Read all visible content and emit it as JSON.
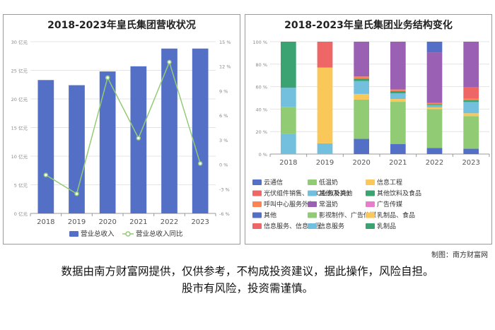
{
  "credit": "制图：南方财富网",
  "disclaimer": [
    "数据由南方财富网提供，仅供参考，不构成投资建议，据此操作，风险自担。",
    "股市有风险，投资需谨慎。"
  ],
  "colors": {
    "bar": "#5470c6",
    "line": "#91cc75",
    "axis_text": "#888888",
    "grid": "#e4e4e4"
  },
  "chart_data": [
    {
      "type": "bar",
      "title": "2018-2023年皇氏集团营收状况",
      "categories": [
        "2018",
        "2019",
        "2020",
        "2021",
        "2022",
        "2023"
      ],
      "y_ticks": [
        "0 亿元",
        "5 亿元",
        "10 亿元",
        "15 亿元",
        "20 亿元",
        "25 亿元",
        "30 亿元"
      ],
      "y2_ticks": [
        "-6 %",
        "-3 %",
        "0 %",
        "3 %",
        "6 %",
        "9 %",
        "12 %",
        "15 %"
      ],
      "ylim": [
        0,
        30
      ],
      "y2lim": [
        -6,
        15
      ],
      "series": [
        {
          "name": "营业总收入",
          "type": "bar",
          "axis": "left",
          "values": [
            23.3,
            22.4,
            24.8,
            25.7,
            28.8,
            28.8
          ]
        },
        {
          "name": "营业总收入同比",
          "type": "line",
          "axis": "right",
          "values": [
            -1.3,
            -3.6,
            10.6,
            3.2,
            12.5,
            0.1
          ]
        }
      ],
      "legend_position": "bottom"
    },
    {
      "type": "bar",
      "stacked": true,
      "title": "2018-2023年皇氏集团业务结构变化",
      "categories": [
        "2018",
        "2019",
        "2020",
        "2021",
        "2022",
        "2023"
      ],
      "y_ticks": [
        "0 %",
        "20 %",
        "40 %",
        "60 %",
        "80 %",
        "100 %"
      ],
      "ylim": [
        0,
        100
      ],
      "series": [
        {
          "name": "云通信",
          "color": "#5470c6",
          "values": [
            0,
            0,
            13.5,
            9,
            5.5,
            4.8
          ]
        },
        {
          "name": "低温奶",
          "color": "#91cc75",
          "values": [
            0,
            0,
            35,
            37.5,
            34.5,
            29
          ]
        },
        {
          "name": "信息工程",
          "color": "#fac858",
          "values": [
            0,
            0,
            5,
            2.5,
            1.5,
            2.5
          ]
        },
        {
          "name": "光伏组件销售、EPC业务及其他",
          "color": "#ee6666",
          "values": [
            0,
            0,
            0,
            0,
            0,
            10.2
          ]
        },
        {
          "name": "其他(补充)",
          "color": "#73c0de",
          "values": [
            17,
            9.5,
            11.5,
            5,
            2,
            10
          ]
        },
        {
          "name": "其他饮料及食品",
          "color": "#3ba272",
          "values": [
            0,
            0,
            2,
            2,
            1,
            1.5
          ]
        },
        {
          "name": "呼叫中心服务外包",
          "color": "#fc8452",
          "values": [
            0,
            0,
            2,
            1.5,
            1,
            1.5
          ]
        },
        {
          "name": "常温奶",
          "color": "#9a60b4",
          "values": [
            0,
            0,
            31,
            42.5,
            45,
            40.5
          ]
        },
        {
          "name": "广告传媒",
          "color": "#ea7ccc",
          "values": [
            0,
            0,
            0,
            0,
            0,
            0
          ]
        },
        {
          "name": "其他",
          "color": "#5470c6",
          "values": [
            0,
            0,
            0,
            0,
            9.5,
            0
          ]
        },
        {
          "name": "影视制作、广告传媒",
          "color": "#91cc75",
          "values": [
            24,
            0,
            0,
            0,
            0,
            0
          ]
        },
        {
          "name": "乳制品、食品",
          "color": "#fac858",
          "values": [
            0,
            67.5,
            0,
            0,
            0,
            0
          ]
        },
        {
          "name": "信息服务、信息工程",
          "color": "#ee6666",
          "values": [
            0,
            23,
            0,
            0,
            0,
            0
          ]
        },
        {
          "name": "信息服务",
          "color": "#73c0de",
          "values": [
            18,
            0,
            0,
            0,
            0,
            0
          ]
        },
        {
          "name": "乳制品",
          "color": "#3ba272",
          "values": [
            41,
            0,
            0,
            0,
            0,
            0
          ]
        }
      ],
      "stack_order": [
        0,
        13,
        10,
        1,
        2,
        4,
        5,
        6,
        3,
        7,
        9,
        11,
        12,
        14
      ],
      "legend_position": "bottom"
    }
  ]
}
